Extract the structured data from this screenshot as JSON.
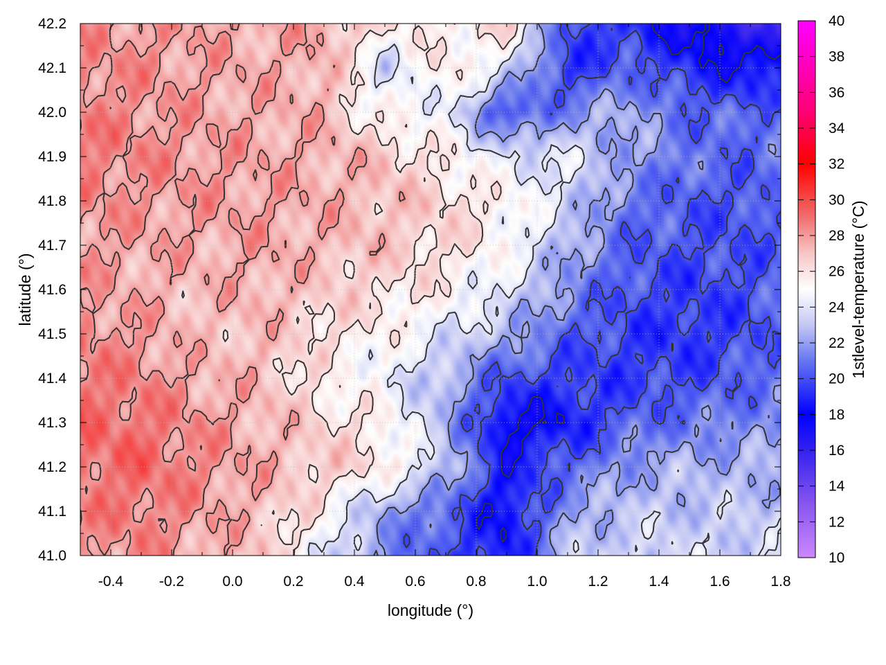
{
  "chart_data": {
    "type": "heatmap",
    "title": "",
    "xlabel": "longitude (°)",
    "ylabel": "latitude (°)",
    "colorbar_label": "1stlevel-temperature (°C)",
    "xlim": [
      -0.5,
      1.8
    ],
    "ylim": [
      41.0,
      42.2
    ],
    "clim": [
      10,
      40
    ],
    "grid": true,
    "x_ticks": [
      {
        "value": -0.4,
        "label": "-0.4"
      },
      {
        "value": -0.2,
        "label": "-0.2"
      },
      {
        "value": 0.0,
        "label": "0.0"
      },
      {
        "value": 0.2,
        "label": "0.2"
      },
      {
        "value": 0.4,
        "label": "0.4"
      },
      {
        "value": 0.6,
        "label": "0.6"
      },
      {
        "value": 0.8,
        "label": "0.8"
      },
      {
        "value": 1.0,
        "label": "1.0"
      },
      {
        "value": 1.2,
        "label": "1.2"
      },
      {
        "value": 1.4,
        "label": "1.4"
      },
      {
        "value": 1.6,
        "label": "1.6"
      },
      {
        "value": 1.8,
        "label": "1.8"
      }
    ],
    "y_ticks": [
      {
        "value": 41.0,
        "label": "41.0"
      },
      {
        "value": 41.1,
        "label": "41.1"
      },
      {
        "value": 41.2,
        "label": "41.2"
      },
      {
        "value": 41.3,
        "label": "41.3"
      },
      {
        "value": 41.4,
        "label": "41.4"
      },
      {
        "value": 41.5,
        "label": "41.5"
      },
      {
        "value": 41.6,
        "label": "41.6"
      },
      {
        "value": 41.7,
        "label": "41.7"
      },
      {
        "value": 41.8,
        "label": "41.8"
      },
      {
        "value": 41.9,
        "label": "41.9"
      },
      {
        "value": 42.0,
        "label": "42.0"
      },
      {
        "value": 42.1,
        "label": "42.1"
      },
      {
        "value": 42.2,
        "label": "42.2"
      }
    ],
    "colorbar_ticks": [
      {
        "value": 10,
        "label": "10"
      },
      {
        "value": 12,
        "label": "12"
      },
      {
        "value": 14,
        "label": "14"
      },
      {
        "value": 16,
        "label": "16"
      },
      {
        "value": 18,
        "label": "18"
      },
      {
        "value": 20,
        "label": "20"
      },
      {
        "value": 22,
        "label": "22"
      },
      {
        "value": 24,
        "label": "24"
      },
      {
        "value": 26,
        "label": "26"
      },
      {
        "value": 28,
        "label": "28"
      },
      {
        "value": 30,
        "label": "30"
      },
      {
        "value": 32,
        "label": "32"
      },
      {
        "value": 34,
        "label": "34"
      },
      {
        "value": 36,
        "label": "36"
      },
      {
        "value": 38,
        "label": "38"
      },
      {
        "value": 40,
        "label": "40"
      }
    ],
    "colormap": [
      {
        "value": 10,
        "color": "#cc88ff"
      },
      {
        "value": 13,
        "color": "#8855ee"
      },
      {
        "value": 16,
        "color": "#3322ee"
      },
      {
        "value": 18,
        "color": "#0000ff"
      },
      {
        "value": 21,
        "color": "#6677ee"
      },
      {
        "value": 23,
        "color": "#c4c8f4"
      },
      {
        "value": 25,
        "color": "#ffffff"
      },
      {
        "value": 27,
        "color": "#f7c6c6"
      },
      {
        "value": 29,
        "color": "#f07070"
      },
      {
        "value": 32,
        "color": "#ff0000"
      },
      {
        "value": 35,
        "color": "#ff0077"
      },
      {
        "value": 40,
        "color": "#ff00ff"
      }
    ],
    "contour_color": "#333333",
    "temperature_field": {
      "x": [
        -0.5,
        -0.3,
        -0.1,
        0.1,
        0.3,
        0.5,
        0.7,
        0.9,
        1.1,
        1.3,
        1.5,
        1.7,
        1.8
      ],
      "y": [
        41.0,
        41.1,
        41.2,
        41.3,
        41.4,
        41.5,
        41.6,
        41.7,
        41.8,
        41.9,
        42.0,
        42.1,
        42.2
      ],
      "z": [
        [
          28.0,
          28.3,
          27.6,
          27.0,
          24.0,
          21.5,
          20.0,
          18.5,
          23.0,
          23.5,
          23.5,
          23.5,
          23.5
        ],
        [
          28.5,
          28.8,
          28.0,
          27.2,
          25.5,
          22.0,
          20.5,
          18.0,
          22.0,
          23.0,
          23.0,
          23.0,
          23.0
        ],
        [
          29.0,
          29.2,
          28.4,
          27.6,
          26.8,
          26.0,
          23.0,
          18.5,
          20.5,
          22.0,
          22.5,
          22.5,
          22.5
        ],
        [
          29.2,
          29.0,
          28.2,
          27.4,
          26.5,
          25.5,
          22.5,
          17.5,
          18.5,
          20.5,
          21.0,
          21.5,
          21.5
        ],
        [
          28.8,
          28.5,
          27.6,
          27.2,
          25.5,
          24.5,
          22.5,
          20.0,
          19.5,
          19.5,
          19.8,
          20.5,
          21.0
        ],
        [
          28.5,
          28.0,
          27.0,
          27.2,
          26.2,
          25.5,
          24.0,
          22.5,
          20.5,
          19.5,
          19.2,
          19.8,
          20.5
        ],
        [
          28.0,
          27.5,
          27.3,
          27.6,
          26.8,
          26.2,
          25.5,
          24.0,
          21.5,
          20.0,
          19.5,
          20.0,
          20.5
        ],
        [
          28.0,
          27.8,
          27.6,
          27.8,
          27.4,
          27.0,
          26.3,
          25.2,
          22.5,
          20.5,
          20.0,
          20.0,
          20.5
        ],
        [
          28.4,
          28.0,
          28.0,
          27.8,
          27.6,
          27.2,
          26.5,
          25.5,
          23.5,
          21.0,
          20.2,
          20.0,
          20.5
        ],
        [
          28.8,
          28.4,
          28.0,
          27.8,
          27.6,
          27.0,
          25.5,
          24.0,
          24.0,
          22.0,
          21.0,
          20.5,
          21.0
        ],
        [
          28.6,
          28.2,
          27.8,
          27.6,
          27.4,
          25.0,
          24.5,
          19.5,
          21.5,
          22.5,
          20.5,
          20.5,
          21.0
        ],
        [
          28.4,
          28.2,
          27.8,
          27.6,
          27.6,
          23.5,
          26.0,
          24.0,
          19.0,
          20.5,
          19.0,
          18.0,
          18.5
        ],
        [
          28.2,
          28.0,
          27.8,
          27.6,
          27.8,
          26.0,
          25.5,
          26.5,
          20.0,
          19.0,
          17.0,
          16.0,
          15.5
        ]
      ]
    }
  }
}
